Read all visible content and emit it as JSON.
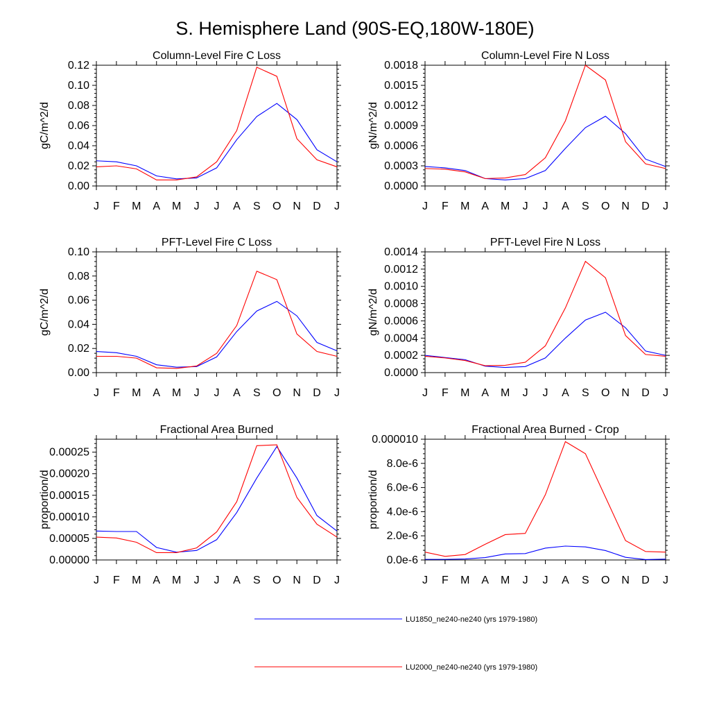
{
  "figure": {
    "title": "S. Hemisphere Land (90S-EQ,180W-180E)"
  },
  "legend": [
    {
      "label": "LU1850_ne240-ne240 (yrs 1979-1980)",
      "color": "#0000ff"
    },
    {
      "label": "LU2000_ne240-ne240 (yrs 1979-1980)",
      "color": "#ff0000"
    }
  ],
  "chart_data": [
    {
      "type": "line",
      "title": "Column-Level Fire C Loss",
      "ylabel": "gC/m^2/d",
      "xlabel": "",
      "categories": [
        "J",
        "F",
        "M",
        "A",
        "M",
        "J",
        "J",
        "A",
        "S",
        "O",
        "N",
        "D",
        "J"
      ],
      "ylim": [
        0,
        0.12
      ],
      "yticks": [
        "0.00",
        "0.02",
        "0.04",
        "0.06",
        "0.08",
        "0.10",
        "0.12"
      ],
      "series": [
        {
          "color": "#0000ff",
          "values": [
            0.025,
            0.024,
            0.02,
            0.01,
            0.007,
            0.008,
            0.018,
            0.046,
            0.069,
            0.082,
            0.066,
            0.036,
            0.024
          ]
        },
        {
          "color": "#ff0000",
          "values": [
            0.019,
            0.02,
            0.017,
            0.006,
            0.006,
            0.009,
            0.024,
            0.055,
            0.118,
            0.109,
            0.047,
            0.026,
            0.019
          ]
        }
      ]
    },
    {
      "type": "line",
      "title": "Column-Level Fire N Loss",
      "ylabel": "gN/m^2/d",
      "xlabel": "",
      "categories": [
        "J",
        "F",
        "M",
        "A",
        "M",
        "J",
        "J",
        "A",
        "S",
        "O",
        "N",
        "D",
        "J"
      ],
      "ylim": [
        0,
        0.0018
      ],
      "yticks": [
        "0.0000",
        "0.0003",
        "0.0006",
        "0.0009",
        "0.0012",
        "0.0015",
        "0.0018"
      ],
      "series": [
        {
          "color": "#0000ff",
          "values": [
            0.00029,
            0.00027,
            0.00023,
            0.00011,
            9e-05,
            0.00011,
            0.00023,
            0.00056,
            0.00087,
            0.00104,
            0.00078,
            0.0004,
            0.00029
          ]
        },
        {
          "color": "#ff0000",
          "values": [
            0.00026,
            0.00025,
            0.00021,
            0.00011,
            0.00012,
            0.00017,
            0.00042,
            0.00097,
            0.0018,
            0.00158,
            0.00066,
            0.00033,
            0.00026
          ]
        }
      ]
    },
    {
      "type": "line",
      "title": "PFT-Level Fire C Loss",
      "ylabel": "gC/m^2/d",
      "xlabel": "",
      "categories": [
        "J",
        "F",
        "M",
        "A",
        "M",
        "J",
        "J",
        "A",
        "S",
        "O",
        "N",
        "D",
        "J"
      ],
      "ylim": [
        0,
        0.1
      ],
      "yticks": [
        "0.00",
        "0.02",
        "0.04",
        "0.06",
        "0.08",
        "0.10"
      ],
      "series": [
        {
          "color": "#0000ff",
          "values": [
            0.0175,
            0.0165,
            0.0135,
            0.0065,
            0.0045,
            0.005,
            0.013,
            0.034,
            0.051,
            0.059,
            0.047,
            0.025,
            0.018
          ]
        },
        {
          "color": "#ff0000",
          "values": [
            0.0135,
            0.0135,
            0.012,
            0.004,
            0.0035,
            0.0055,
            0.016,
            0.039,
            0.084,
            0.077,
            0.032,
            0.0175,
            0.0135
          ]
        }
      ]
    },
    {
      "type": "line",
      "title": "PFT-Level Fire N Loss",
      "ylabel": "gN/m^2/d",
      "xlabel": "",
      "categories": [
        "J",
        "F",
        "M",
        "A",
        "M",
        "J",
        "J",
        "A",
        "S",
        "O",
        "N",
        "D",
        "J"
      ],
      "ylim": [
        0,
        0.0014
      ],
      "yticks": [
        "0.0000",
        "0.0002",
        "0.0004",
        "0.0006",
        "0.0008",
        "0.0010",
        "0.0012",
        "0.0014"
      ],
      "series": [
        {
          "color": "#0000ff",
          "values": [
            0.0002,
            0.000175,
            0.00015,
            7.5e-05,
            6e-05,
            7e-05,
            0.00017,
            0.0004,
            0.00061,
            0.0007,
            0.00052,
            0.00025,
            0.0002
          ]
        },
        {
          "color": "#ff0000",
          "values": [
            0.00019,
            0.00017,
            0.00014,
            8e-05,
            8.5e-05,
            0.00012,
            0.00031,
            0.00075,
            0.00129,
            0.0011,
            0.00043,
            0.00021,
            0.00019
          ]
        }
      ]
    },
    {
      "type": "line",
      "title": "Fractional Area Burned",
      "ylabel": "proportion/d",
      "xlabel": "",
      "categories": [
        "J",
        "F",
        "M",
        "A",
        "M",
        "J",
        "J",
        "A",
        "S",
        "O",
        "N",
        "D",
        "J"
      ],
      "ylim": [
        0,
        0.00028
      ],
      "yticks": [
        "0.00000",
        "0.00005",
        "0.00010",
        "0.00015",
        "0.00020",
        "0.00025"
      ],
      "series": [
        {
          "color": "#0000ff",
          "values": [
            6.7e-05,
            6.6e-05,
            6.6e-05,
            2.9e-05,
            1.8e-05,
            2.2e-05,
            4.7e-05,
            0.00011,
            0.00019,
            0.000263,
            0.00019,
            0.000103,
            6.7e-05
          ]
        },
        {
          "color": "#ff0000",
          "values": [
            5.3e-05,
            5.1e-05,
            4.1e-05,
            1.7e-05,
            1.7e-05,
            2.8e-05,
            6.5e-05,
            0.000135,
            0.000265,
            0.000267,
            0.000145,
            8.3e-05,
            5.3e-05
          ]
        }
      ]
    },
    {
      "type": "line",
      "title": "Fractional Area Burned - Crop",
      "ylabel": "proportion/d",
      "xlabel": "",
      "categories": [
        "J",
        "F",
        "M",
        "A",
        "M",
        "J",
        "J",
        "A",
        "S",
        "O",
        "N",
        "D",
        "J"
      ],
      "ylim": [
        0,
        1e-05
      ],
      "yticks": [
        "0.0e-6",
        "2.0e-6",
        "4.0e-6",
        "6.0e-6",
        "8.0e-6",
        "0.000010"
      ],
      "series": [
        {
          "color": "#0000ff",
          "values": [
            5e-08,
            5e-08,
            8e-08,
            2e-07,
            5e-07,
            5.3e-07,
            9.8e-07,
            1.15e-06,
            1.08e-06,
            7.8e-07,
            2.2e-07,
            3e-08,
            7e-08
          ]
        },
        {
          "color": "#ff0000",
          "values": [
            6.5e-07,
            3e-07,
            4.5e-07,
            1.3e-06,
            2.1e-06,
            2.2e-06,
            5.4e-06,
            9.8e-06,
            8.8e-06,
            5.2e-06,
            1.6e-06,
            7e-07,
            6.5e-07
          ]
        }
      ]
    }
  ]
}
